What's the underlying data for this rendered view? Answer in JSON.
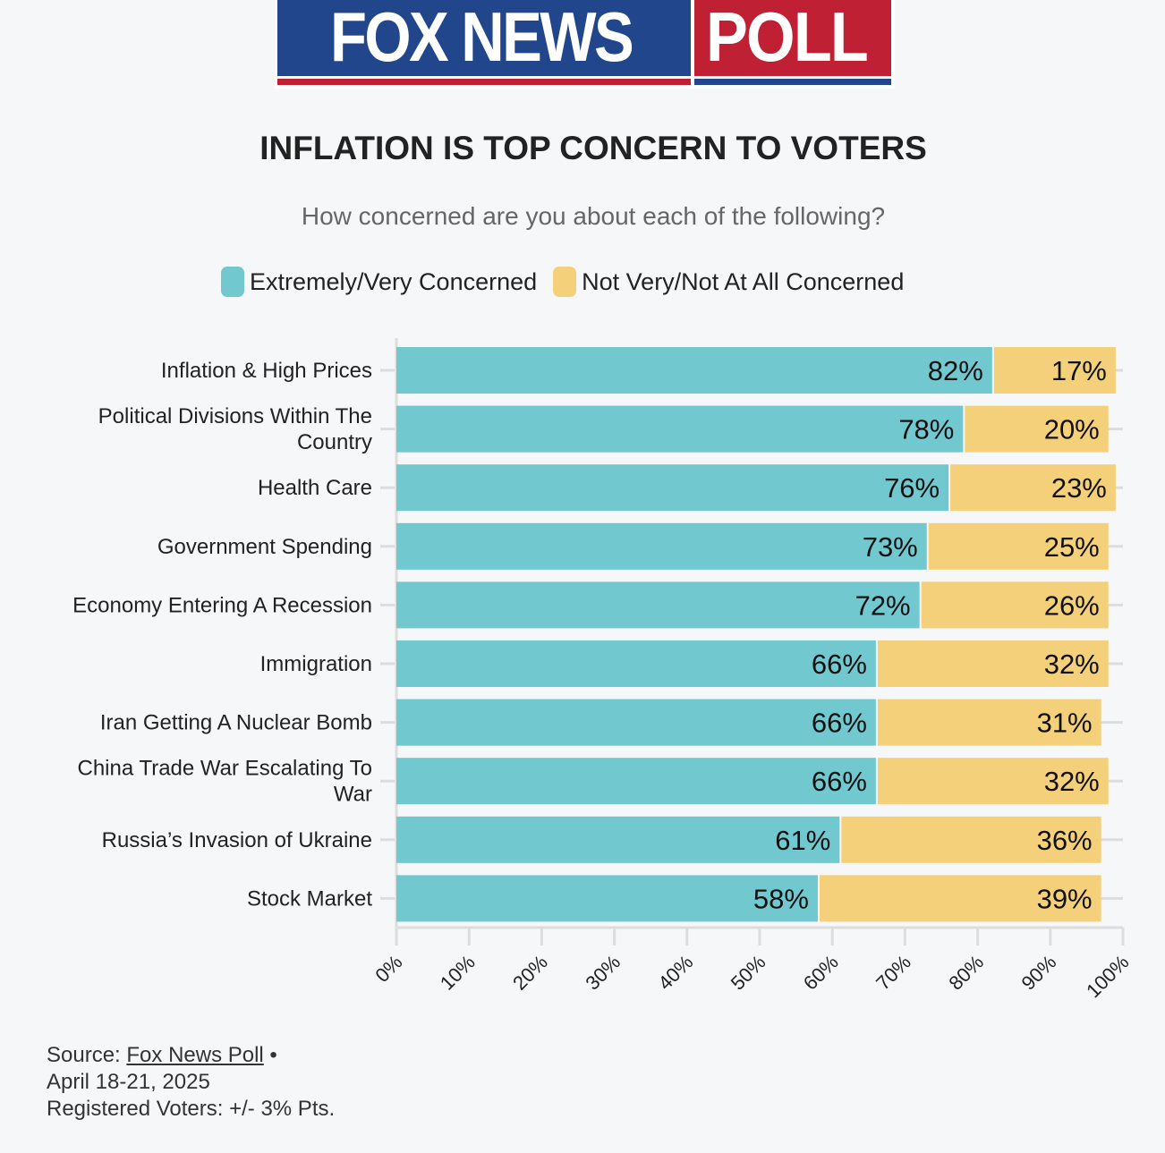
{
  "logo": {
    "text1": "FOX NEWS",
    "text2": "POLL"
  },
  "title": "INFLATION IS TOP CONCERN TO VOTERS",
  "subtitle": "How concerned are you about each of the following?",
  "colors": {
    "concerned": "#72c8cf",
    "not_concerned": "#f5d07a"
  },
  "chart_data": {
    "type": "bar",
    "stacked": true,
    "orientation": "horizontal",
    "categories": [
      [
        "Inflation & High Prices"
      ],
      [
        "Political Divisions Within The",
        "Country"
      ],
      [
        "Health Care"
      ],
      [
        "Government Spending"
      ],
      [
        "Economy Entering A Recession"
      ],
      [
        "Immigration"
      ],
      [
        "Iran Getting A Nuclear Bomb"
      ],
      [
        "China Trade War Escalating To",
        "War"
      ],
      [
        "Russia’s Invasion of Ukraine"
      ],
      [
        "Stock Market"
      ]
    ],
    "series": [
      {
        "name": "Extremely/Very Concerned",
        "values": [
          82,
          78,
          76,
          73,
          72,
          66,
          66,
          66,
          61,
          58
        ]
      },
      {
        "name": "Not Very/Not At All Concerned",
        "values": [
          17,
          20,
          23,
          25,
          26,
          32,
          31,
          32,
          36,
          39
        ]
      }
    ],
    "xlim": [
      0,
      100
    ],
    "xticks": [
      "0%",
      "10%",
      "20%",
      "30%",
      "40%",
      "50%",
      "60%",
      "70%",
      "80%",
      "90%",
      "100%"
    ],
    "legend": "top"
  },
  "source": {
    "prefix": "Source: ",
    "link": "Fox News Poll",
    "bullet": " •",
    "date": "April 18-21, 2025",
    "note": "Registered Voters: +/- 3% Pts."
  }
}
